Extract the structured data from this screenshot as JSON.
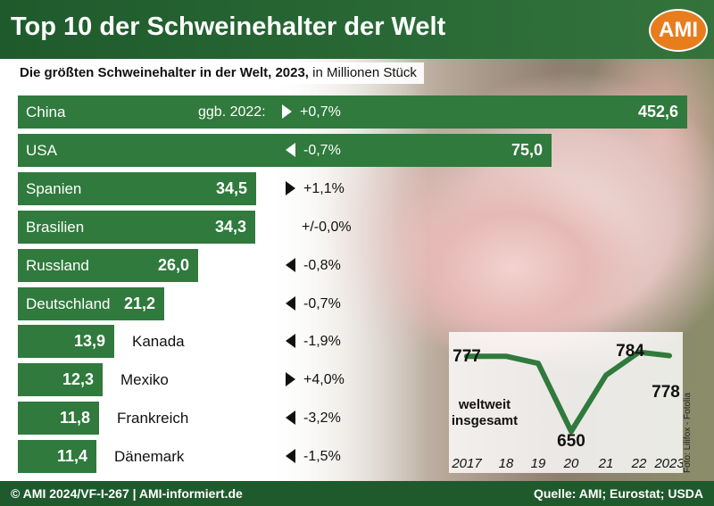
{
  "header": {
    "title": "Top 10 der Schweinehalter der Welt",
    "logo": "AMI"
  },
  "subtitle": {
    "bold": "Die größten Schweinehalter in der Welt, 2023,",
    "normal": " in Millionen Stück"
  },
  "change_caption": "ggb. 2022:",
  "chart_data": [
    {
      "type": "bar",
      "orientation": "horizontal",
      "categories": [
        "China",
        "USA",
        "Spanien",
        "Brasilien",
        "Russland",
        "Deutschland",
        "Kanada",
        "Mexiko",
        "Frankreich",
        "Dänemark"
      ],
      "values": [
        452.6,
        75.0,
        34.5,
        34.3,
        26.0,
        21.2,
        13.9,
        12.3,
        11.8,
        11.4
      ],
      "value_labels": [
        "452,6",
        "75,0",
        "34,5",
        "34,3",
        "26,0",
        "21,2",
        "13,9",
        "12,3",
        "11,8",
        "11,4"
      ],
      "changes": [
        "+0,7%",
        "-0,7%",
        "+1,1%",
        "+/-0,0%",
        "-0,8%",
        "-0,7%",
        "-1,9%",
        "+4,0%",
        "-3,2%",
        "-1,5%"
      ],
      "change_direction": [
        "up",
        "down",
        "up",
        "none",
        "down",
        "down",
        "down",
        "up",
        "down",
        "down"
      ],
      "bar_color": "#2f7a3c"
    },
    {
      "type": "line",
      "x": [
        "2017",
        "18",
        "19",
        "20",
        "21",
        "22",
        "2023"
      ],
      "y": [
        777,
        777,
        765,
        650,
        745,
        784,
        778
      ],
      "point_labels": [
        {
          "x": "2017",
          "label": "777"
        },
        {
          "x": "20",
          "label": "650"
        },
        {
          "x": "22",
          "label": "784"
        },
        {
          "x": "2023",
          "label": "778"
        }
      ],
      "annotation": "weltweit insgesamt",
      "ylim": [
        640,
        800
      ],
      "line_color": "#2f7a3c"
    }
  ],
  "footer": {
    "left": "© AMI 2024/VF-I-267 | AMI-informiert.de",
    "right": "Quelle: AMI; Eurostat; USDA"
  },
  "photo_credit": "Foto: Lilifox - Fotolia"
}
